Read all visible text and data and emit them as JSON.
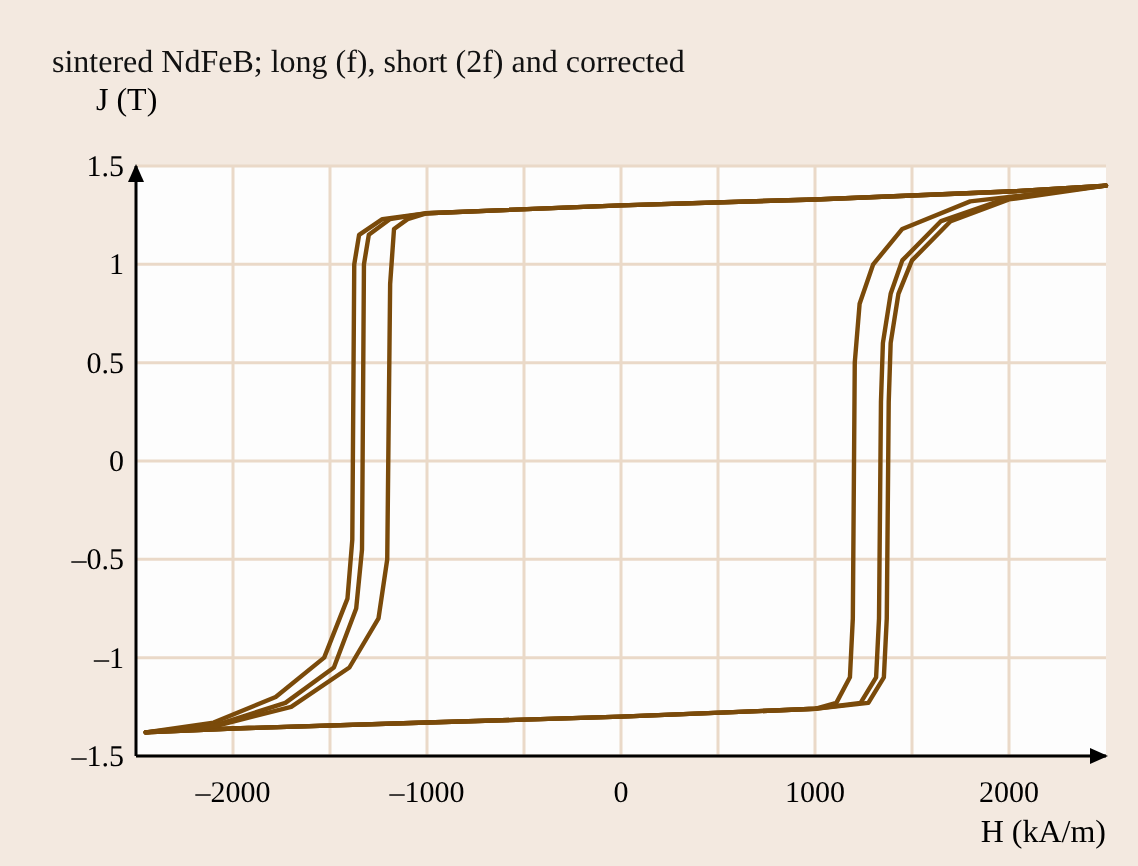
{
  "chart_data": {
    "type": "line",
    "title": "sintered NdFeB; long (f), short (2f) and corrected",
    "xlabel": "H (kA/m)",
    "ylabel": "J (T)",
    "xlim": [
      -2500,
      2500
    ],
    "ylim": [
      -1.5,
      1.5
    ],
    "xticks": [
      {
        "value": -2000,
        "label": "–2000"
      },
      {
        "value": -1500,
        "label": null
      },
      {
        "value": -1000,
        "label": "–1000"
      },
      {
        "value": -500,
        "label": null
      },
      0,
      {
        "value": 500,
        "label": null
      },
      1000,
      {
        "value": 1500,
        "label": null
      },
      2000
    ],
    "yticks": [
      {
        "value": -1.5,
        "label": "–1.5"
      },
      {
        "value": -1,
        "label": "–1"
      },
      {
        "value": -0.5,
        "label": "–0.5"
      },
      0,
      0.5,
      1,
      1.5
    ],
    "grid": true,
    "marker": "none",
    "line_style": "solid",
    "series": [
      {
        "color": "#7a4a0a",
        "x": [
          -2450,
          -2000,
          -1000,
          0,
          1000,
          1275,
          1355,
          1370,
          1380,
          1390,
          1430,
          1500,
          1700,
          2000,
          2500
        ],
        "values": [
          -1.38,
          -1.36,
          -1.33,
          -1.3,
          -1.26,
          -1.23,
          -1.1,
          -0.8,
          0.3,
          0.6,
          0.85,
          1.02,
          1.22,
          1.33,
          1.4
        ]
      },
      {
        "color": "#7a4a0a",
        "x": [
          2500,
          2000,
          1000,
          0,
          -1000,
          -1230,
          -1350,
          -1375,
          -1385,
          -1410,
          -1530,
          -1780,
          -2100,
          -2450
        ],
        "values": [
          1.4,
          1.37,
          1.33,
          1.3,
          1.26,
          1.23,
          1.15,
          1,
          -0.4,
          -0.7,
          -1,
          -1.2,
          -1.33,
          -1.38
        ]
      },
      {
        "color": "#7a4a0a",
        "x": [
          -2450,
          -2000,
          -1000,
          0,
          1000,
          1235,
          1315,
          1330,
          1340,
          1350,
          1390,
          1450,
          1650,
          2000,
          2500
        ],
        "values": [
          -1.38,
          -1.36,
          -1.33,
          -1.3,
          -1.26,
          -1.23,
          -1.1,
          -0.8,
          0.3,
          0.6,
          0.85,
          1.02,
          1.22,
          1.34,
          1.4
        ]
      },
      {
        "color": "#7a4a0a",
        "x": [
          2500,
          2000,
          1000,
          0,
          -1000,
          -1190,
          -1300,
          -1325,
          -1335,
          -1365,
          -1480,
          -1730,
          -2080,
          -2450
        ],
        "values": [
          1.4,
          1.37,
          1.33,
          1.3,
          1.26,
          1.23,
          1.15,
          1,
          -0.45,
          -0.75,
          -1.05,
          -1.23,
          -1.34,
          -1.38
        ]
      },
      {
        "color": "#7a4a0a",
        "x": [
          -2450,
          -2000,
          -1000,
          0,
          1000,
          1110,
          1180,
          1195,
          1205,
          1230,
          1300,
          1450,
          1800,
          2500
        ],
        "values": [
          -1.38,
          -1.36,
          -1.33,
          -1.3,
          -1.26,
          -1.23,
          -1.1,
          -0.8,
          0.5,
          0.8,
          1,
          1.18,
          1.32,
          1.4
        ]
      },
      {
        "color": "#7a4a0a",
        "x": [
          2500,
          2000,
          1000,
          0,
          -1000,
          -1100,
          -1170,
          -1190,
          -1205,
          -1250,
          -1400,
          -1700,
          -2100,
          -2450
        ],
        "values": [
          1.4,
          1.37,
          1.33,
          1.3,
          1.26,
          1.23,
          1.18,
          0.9,
          -0.5,
          -0.8,
          -1.05,
          -1.25,
          -1.35,
          -1.38
        ]
      }
    ]
  }
}
